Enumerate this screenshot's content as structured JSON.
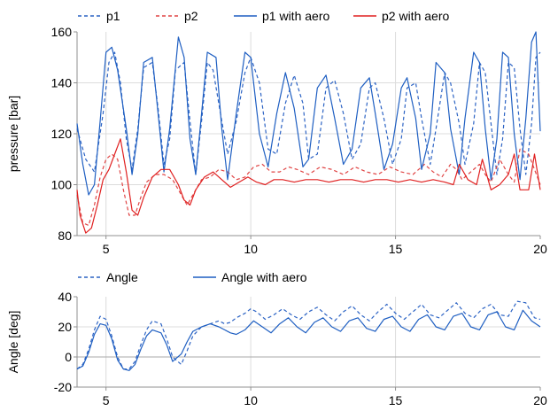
{
  "chart_data": [
    {
      "type": "line",
      "ylabel": "pressure [bar]",
      "xlim": [
        4,
        20
      ],
      "ylim": [
        80,
        160
      ],
      "xticks": [
        "5",
        "10",
        "15",
        "20"
      ],
      "yticks": [
        "80",
        "100",
        "120",
        "140",
        "160"
      ],
      "grid": true,
      "legend": "top",
      "series": [
        {
          "name": "p1",
          "style": "dashed",
          "color": "#2C63C4",
          "x": [
            4.0,
            4.3,
            4.6,
            4.9,
            5.1,
            5.3,
            5.5,
            5.7,
            5.9,
            6.1,
            6.3,
            6.6,
            6.8,
            7.0,
            7.2,
            7.4,
            7.7,
            7.9,
            8.1,
            8.3,
            8.5,
            8.7,
            9.0,
            9.2,
            9.5,
            9.8,
            10.0,
            10.3,
            10.6,
            10.9,
            11.2,
            11.5,
            11.8,
            12.0,
            12.3,
            12.6,
            12.9,
            13.2,
            13.5,
            13.8,
            14.1,
            14.3,
            14.6,
            14.9,
            15.2,
            15.4,
            15.7,
            15.9,
            16.2,
            16.4,
            16.7,
            16.9,
            17.2,
            17.4,
            17.7,
            17.9,
            18.1,
            18.3,
            18.5,
            18.7,
            18.9,
            19.1,
            19.3,
            19.5,
            19.7,
            19.85,
            20.0
          ],
          "y": [
            122,
            110,
            105,
            128,
            148,
            152,
            140,
            118,
            106,
            122,
            146,
            148,
            130,
            108,
            118,
            145,
            148,
            125,
            104,
            125,
            148,
            145,
            125,
            112,
            125,
            144,
            150,
            140,
            114,
            112,
            132,
            143,
            132,
            110,
            112,
            138,
            141,
            128,
            110,
            116,
            138,
            140,
            126,
            108,
            118,
            138,
            140,
            126,
            108,
            122,
            144,
            140,
            124,
            108,
            124,
            148,
            144,
            124,
            104,
            118,
            148,
            146,
            122,
            104,
            124,
            150,
            152
          ]
        },
        {
          "name": "p2",
          "style": "dashed",
          "color": "#E04545",
          "x": [
            4.0,
            4.2,
            4.4,
            4.6,
            4.8,
            5.0,
            5.2,
            5.4,
            5.6,
            5.8,
            6.0,
            6.2,
            6.4,
            6.7,
            7.0,
            7.3,
            7.6,
            7.8,
            8.0,
            8.3,
            8.6,
            8.9,
            9.2,
            9.5,
            9.8,
            10.1,
            10.4,
            10.7,
            11.0,
            11.3,
            11.6,
            12.0,
            12.4,
            12.8,
            13.2,
            13.6,
            14.0,
            14.4,
            14.8,
            15.2,
            15.6,
            16.0,
            16.3,
            16.6,
            16.9,
            17.1,
            17.3,
            17.6,
            17.9,
            18.1,
            18.3,
            18.6,
            18.9,
            19.1,
            19.3,
            19.6,
            19.8,
            20.0
          ],
          "y": [
            96,
            85,
            84,
            92,
            103,
            110,
            112,
            110,
            98,
            88,
            88,
            95,
            101,
            104,
            104,
            102,
            96,
            92,
            96,
            102,
            103,
            106,
            105,
            102,
            103,
            107,
            108,
            105,
            105,
            107,
            106,
            104,
            107,
            106,
            104,
            107,
            105,
            104,
            107,
            105,
            104,
            108,
            105,
            103,
            108,
            106,
            102,
            105,
            108,
            104,
            101,
            110,
            104,
            101,
            114,
            112,
            106,
            100
          ]
        },
        {
          "name": "p1 with aero",
          "style": "solid",
          "color": "#1F5FC2",
          "x": [
            4.0,
            4.2,
            4.4,
            4.6,
            4.8,
            5.0,
            5.2,
            5.4,
            5.7,
            5.9,
            6.1,
            6.3,
            6.6,
            6.8,
            7.0,
            7.2,
            7.5,
            7.7,
            7.9,
            8.1,
            8.3,
            8.5,
            8.8,
            9.0,
            9.2,
            9.5,
            9.8,
            10.0,
            10.3,
            10.6,
            10.9,
            11.2,
            11.5,
            11.8,
            12.0,
            12.3,
            12.6,
            12.9,
            13.2,
            13.5,
            13.8,
            14.1,
            14.3,
            14.6,
            14.9,
            15.2,
            15.4,
            15.7,
            15.9,
            16.2,
            16.4,
            16.7,
            16.9,
            17.2,
            17.4,
            17.7,
            17.9,
            18.1,
            18.3,
            18.5,
            18.7,
            18.9,
            19.1,
            19.3,
            19.5,
            19.7,
            19.85,
            20.0
          ],
          "y": [
            124,
            108,
            96,
            100,
            125,
            152,
            154,
            145,
            122,
            104,
            120,
            148,
            150,
            128,
            105,
            122,
            158,
            150,
            118,
            104,
            128,
            152,
            150,
            122,
            102,
            128,
            152,
            150,
            120,
            107,
            128,
            144,
            130,
            107,
            110,
            138,
            143,
            126,
            108,
            114,
            138,
            142,
            128,
            106,
            116,
            138,
            142,
            126,
            106,
            120,
            148,
            144,
            122,
            104,
            126,
            152,
            148,
            122,
            102,
            118,
            152,
            150,
            120,
            102,
            126,
            156,
            160,
            121
          ]
        },
        {
          "name": "p2 with aero",
          "style": "solid",
          "color": "#E02020",
          "x": [
            4.0,
            4.1,
            4.3,
            4.5,
            4.7,
            4.9,
            5.1,
            5.3,
            5.5,
            5.7,
            5.9,
            6.1,
            6.3,
            6.6,
            6.9,
            7.2,
            7.5,
            7.7,
            7.9,
            8.1,
            8.4,
            8.7,
            9.0,
            9.3,
            9.6,
            9.9,
            10.2,
            10.5,
            10.8,
            11.1,
            11.5,
            11.9,
            12.3,
            12.7,
            13.1,
            13.5,
            13.9,
            14.3,
            14.7,
            15.1,
            15.5,
            15.9,
            16.3,
            16.7,
            17.0,
            17.2,
            17.5,
            17.8,
            18.0,
            18.3,
            18.6,
            18.9,
            19.1,
            19.3,
            19.6,
            19.8,
            20.0
          ],
          "y": [
            98,
            88,
            81,
            83,
            92,
            102,
            106,
            112,
            118,
            105,
            90,
            88,
            95,
            103,
            106,
            106,
            100,
            94,
            92,
            98,
            103,
            105,
            102,
            99,
            101,
            103,
            101,
            100,
            102,
            102,
            101,
            102,
            102,
            101,
            102,
            102,
            101,
            102,
            102,
            101,
            102,
            101,
            102,
            101,
            100,
            108,
            102,
            100,
            110,
            98,
            100,
            104,
            112,
            98,
            98,
            112,
            98
          ]
        }
      ]
    },
    {
      "type": "line",
      "ylabel": "Angle [deg]",
      "xlim": [
        4,
        20
      ],
      "ylim": [
        -20,
        40
      ],
      "xticks": [
        "5",
        "10",
        "15",
        "20"
      ],
      "yticks": [
        "-20",
        "0",
        "20",
        "40"
      ],
      "grid": true,
      "legend": "top",
      "series": [
        {
          "name": "Angle",
          "style": "dashed",
          "color": "#2C63C4",
          "x": [
            4.0,
            4.2,
            4.4,
            4.6,
            4.8,
            5.0,
            5.2,
            5.4,
            5.6,
            5.8,
            6.0,
            6.2,
            6.4,
            6.6,
            6.9,
            7.1,
            7.3,
            7.6,
            7.8,
            8.0,
            8.3,
            8.6,
            8.9,
            9.1,
            9.3,
            9.5,
            9.8,
            10.0,
            10.2,
            10.5,
            10.8,
            11.1,
            11.4,
            11.7,
            12.0,
            12.3,
            12.6,
            12.9,
            13.2,
            13.5,
            13.8,
            14.1,
            14.4,
            14.7,
            15.0,
            15.3,
            15.6,
            15.9,
            16.2,
            16.5,
            16.8,
            17.1,
            17.4,
            17.7,
            18.0,
            18.3,
            18.6,
            18.9,
            19.2,
            19.5,
            19.8,
            20.0
          ],
          "y": [
            -8,
            -5,
            5,
            18,
            27,
            25,
            14,
            0,
            -8,
            -8,
            -3,
            8,
            18,
            24,
            22,
            12,
            0,
            -5,
            4,
            14,
            20,
            22,
            24,
            22,
            23,
            26,
            29,
            32,
            30,
            25,
            28,
            32,
            28,
            25,
            30,
            33,
            28,
            24,
            30,
            34,
            28,
            24,
            30,
            35,
            29,
            25,
            30,
            35,
            28,
            26,
            31,
            36,
            29,
            26,
            32,
            35,
            28,
            27,
            37,
            36,
            26,
            25
          ]
        },
        {
          "name": "Angle with aero",
          "style": "solid",
          "color": "#1F5FC2",
          "x": [
            4.0,
            4.2,
            4.4,
            4.6,
            4.8,
            5.0,
            5.2,
            5.4,
            5.6,
            5.8,
            6.0,
            6.2,
            6.4,
            6.6,
            6.9,
            7.1,
            7.3,
            7.6,
            7.8,
            8.0,
            8.3,
            8.6,
            8.9,
            9.1,
            9.3,
            9.5,
            9.8,
            10.1,
            10.4,
            10.7,
            11.0,
            11.3,
            11.6,
            11.9,
            12.2,
            12.5,
            12.8,
            13.1,
            13.4,
            13.7,
            14.0,
            14.3,
            14.6,
            14.9,
            15.2,
            15.5,
            15.8,
            16.1,
            16.4,
            16.7,
            17.0,
            17.3,
            17.6,
            17.9,
            18.2,
            18.5,
            18.8,
            19.1,
            19.4,
            19.7,
            20.0
          ],
          "y": [
            -8,
            -6,
            3,
            15,
            22,
            21,
            12,
            -2,
            -8,
            -9,
            -5,
            5,
            14,
            18,
            16,
            8,
            -3,
            2,
            10,
            17,
            20,
            22,
            20,
            18,
            16,
            15,
            18,
            24,
            20,
            16,
            22,
            26,
            20,
            16,
            23,
            26,
            20,
            17,
            24,
            26,
            19,
            17,
            25,
            27,
            20,
            17,
            25,
            28,
            20,
            18,
            27,
            29,
            20,
            18,
            28,
            30,
            20,
            18,
            31,
            24,
            20
          ]
        }
      ]
    }
  ]
}
